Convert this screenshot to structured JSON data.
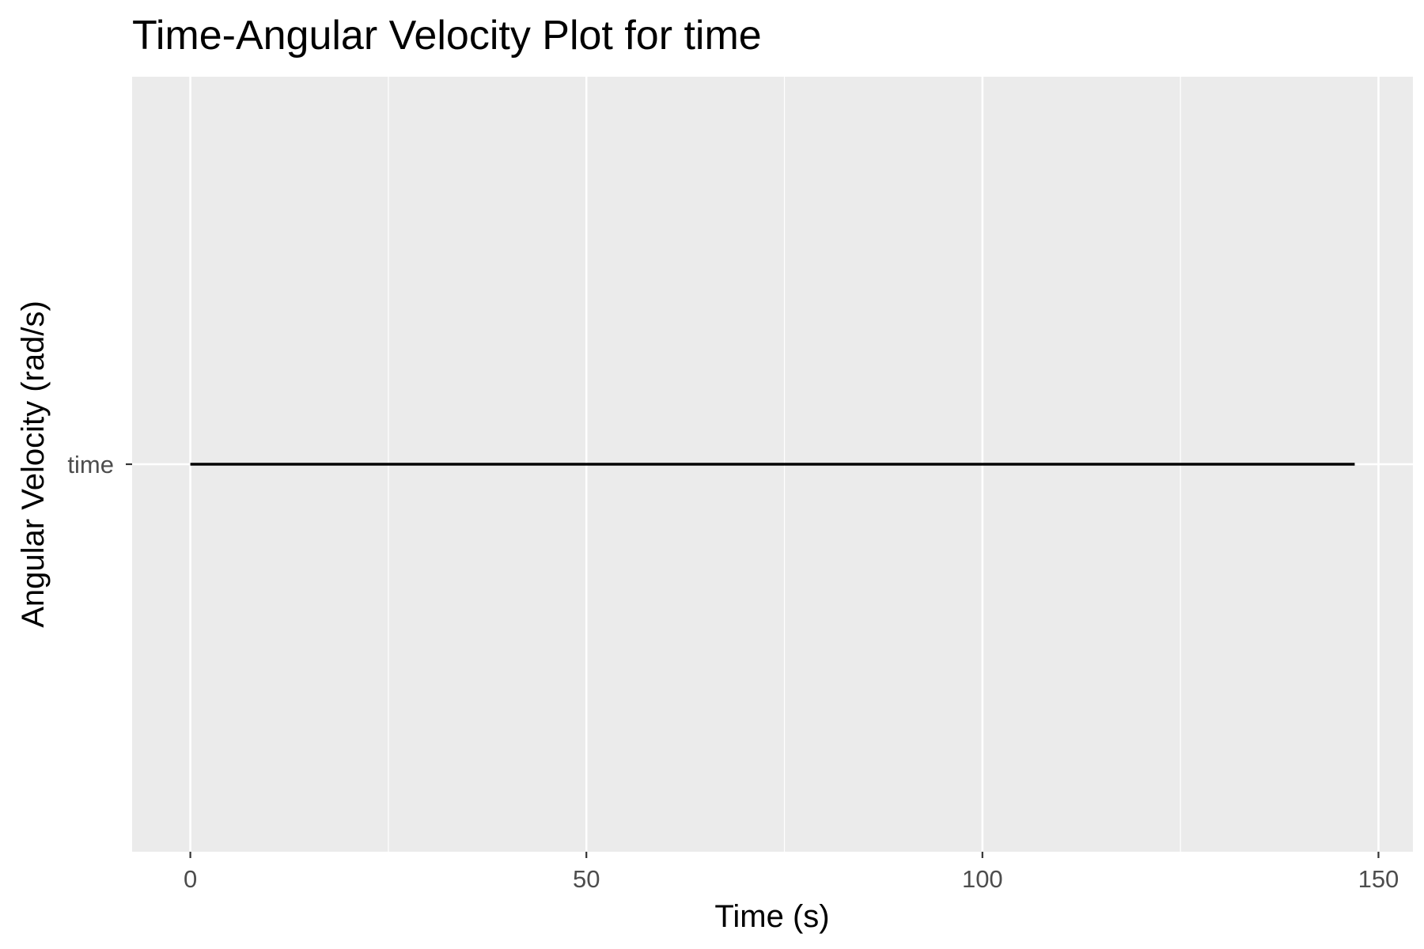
{
  "chart_data": {
    "type": "line",
    "title": "Time-Angular Velocity Plot for time",
    "xlabel": "Time (s)",
    "ylabel": "Angular Velocity (rad/s)",
    "x_ticks": [
      0,
      50,
      100,
      150
    ],
    "x_minor_ticks": [
      25,
      75,
      125
    ],
    "xlim": [
      -7.35,
      154.35
    ],
    "y_categories": [
      "time"
    ],
    "series": [
      {
        "category": "time",
        "x": [
          0,
          147
        ]
      }
    ],
    "grid": true,
    "legend": "none",
    "colors": {
      "panel_background": "#ebebeb",
      "grid": "#ffffff",
      "line": "#000000",
      "tick_label": "#4d4d4d",
      "tick_mark": "#333333"
    }
  }
}
